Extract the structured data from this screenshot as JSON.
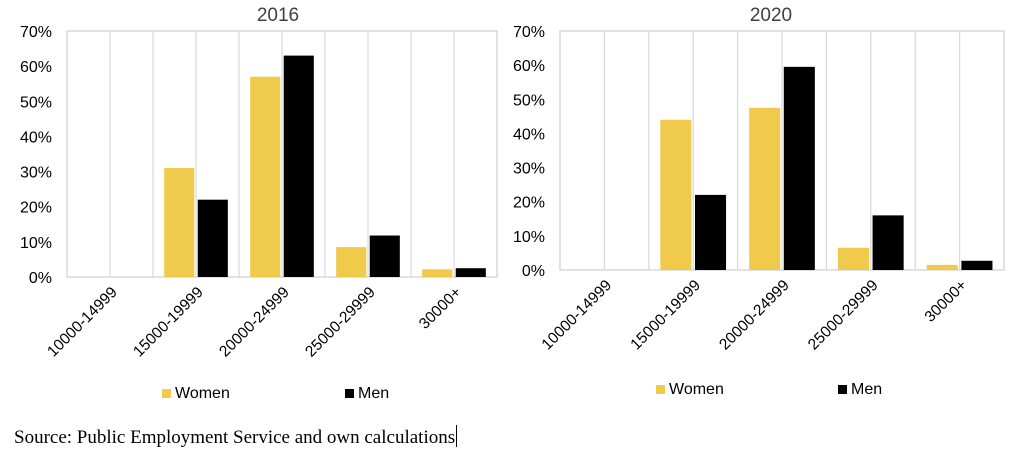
{
  "chart_data": [
    {
      "type": "bar",
      "title": "2016",
      "categories": [
        "10000-14999",
        "15000-19999",
        "20000-24999",
        "25000-29999",
        "30000+"
      ],
      "series": [
        {
          "name": "Women",
          "values": [
            0,
            31,
            57,
            8.5,
            2.2
          ]
        },
        {
          "name": "Men",
          "values": [
            0,
            22,
            63,
            11.8,
            2.5
          ]
        }
      ],
      "ylim": [
        0,
        70
      ],
      "yticks": [
        "0%",
        "10%",
        "20%",
        "30%",
        "40%",
        "50%",
        "60%",
        "70%"
      ],
      "grid": "vertical",
      "legend": "bottom"
    },
    {
      "type": "bar",
      "title": "2020",
      "categories": [
        "10000-14999",
        "15000-19999",
        "20000-24999",
        "25000-29999",
        "30000+"
      ],
      "series": [
        {
          "name": "Women",
          "values": [
            0,
            44,
            47.5,
            6.5,
            1.5
          ]
        },
        {
          "name": "Men",
          "values": [
            0,
            22,
            59.5,
            16,
            2.7
          ]
        }
      ],
      "ylim": [
        0,
        70
      ],
      "yticks": [
        "0%",
        "10%",
        "20%",
        "30%",
        "40%",
        "50%",
        "60%",
        "70%"
      ],
      "grid": "vertical",
      "legend": "bottom"
    }
  ],
  "colors": {
    "women": "#EFCA4B",
    "men": "#000000",
    "frame": "#D9D9D9"
  },
  "source": "Source: Public Employment Service and own calculations"
}
